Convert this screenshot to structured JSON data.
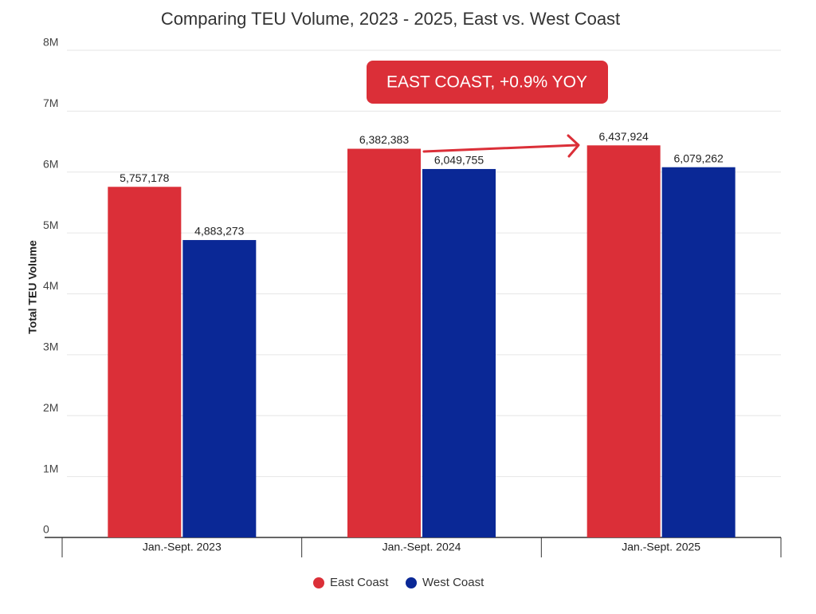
{
  "chart_data": {
    "type": "bar",
    "title": "Comparing TEU Volume, 2023 - 2025, East vs. West Coast",
    "y_label": "Total TEU Volume",
    "annotation": "EAST COAST, +0.9% YOY",
    "categories": [
      "Jan.-Sept. 2023",
      "Jan.-Sept. 2024",
      "Jan.-Sept. 2025"
    ],
    "series": [
      {
        "name": "East Coast",
        "color": "#db2f38",
        "values": [
          5757178,
          6382383,
          6437924
        ],
        "value_labels": [
          "5,757,178",
          "6,382,383",
          "6,437,924"
        ]
      },
      {
        "name": "West Coast",
        "color": "#0a2896",
        "values": [
          4883273,
          6049755,
          6079262
        ],
        "value_labels": [
          "4,883,273",
          "6,049,755",
          "6,079,262"
        ]
      }
    ],
    "ylim": [
      0,
      8000000
    ],
    "yticks": [
      0,
      {
        "value": 1000000,
        "label": "1M"
      },
      {
        "value": 2000000,
        "label": "2M"
      },
      {
        "value": 3000000,
        "label": "3M"
      },
      {
        "value": 4000000,
        "label": "4M"
      },
      {
        "value": 5000000,
        "label": "5M"
      },
      {
        "value": 6000000,
        "label": "6M"
      },
      {
        "value": 7000000,
        "label": "7M"
      },
      {
        "value": 8000000,
        "label": "8M"
      }
    ],
    "grid": true,
    "legend": "bottom"
  }
}
